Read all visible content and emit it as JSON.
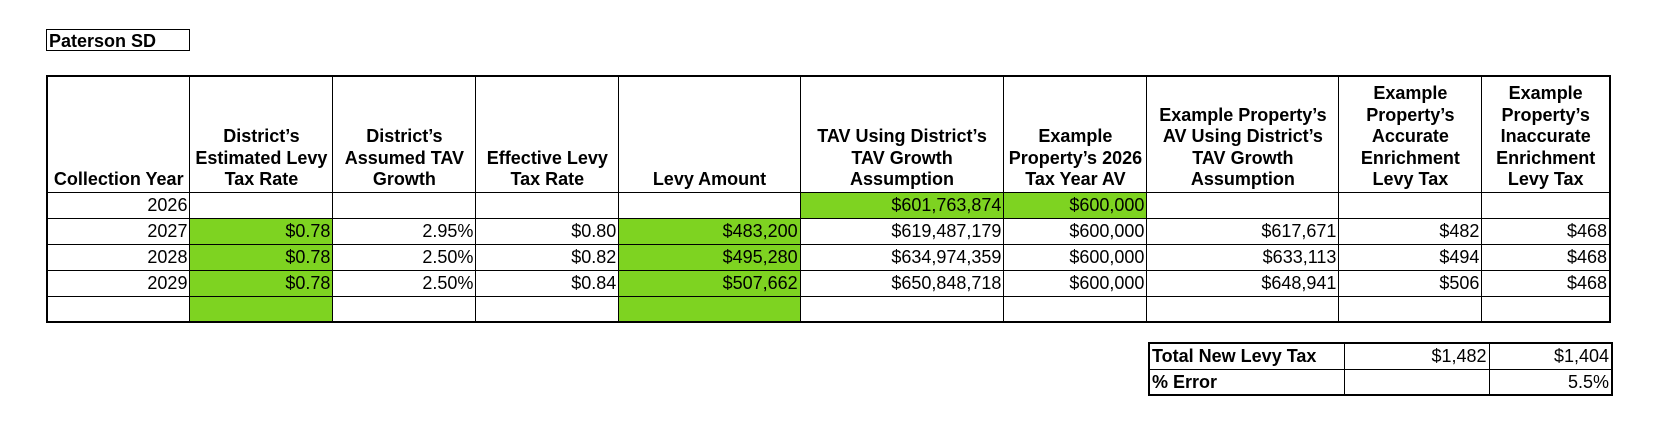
{
  "title": "Paterson SD",
  "colors": {
    "highlight": "#7ed321"
  },
  "headers": [
    "Collection Year",
    "District’s Estimated Levy Tax Rate",
    "District’s Assumed TAV Growth",
    "Effective Levy Tax Rate",
    "Levy Amount",
    "TAV Using District’s TAV Growth Assumption",
    "Example Property’s 2026 Tax Year AV",
    "Example Property’s AV Using District’s TAV Growth Assumption",
    "Example Property’s Accurate Enrichment Levy Tax",
    "Example Property’s Inaccurate Enrichment Levy Tax"
  ],
  "rows": [
    {
      "year": "2026",
      "rate": "",
      "growth": "",
      "eff": "",
      "levy": "",
      "tav": "$601,763,874",
      "av2026": "$600,000",
      "av": "",
      "accurate": "",
      "inaccurate": ""
    },
    {
      "year": "2027",
      "rate": "$0.78",
      "growth": "2.95%",
      "eff": "$0.80",
      "levy": "$483,200",
      "tav": "$619,487,179",
      "av2026": "$600,000",
      "av": "$617,671",
      "accurate": "$482",
      "inaccurate": "$468"
    },
    {
      "year": "2028",
      "rate": "$0.78",
      "growth": "2.50%",
      "eff": "$0.82",
      "levy": "$495,280",
      "tav": "$634,974,359",
      "av2026": "$600,000",
      "av": "$633,113",
      "accurate": "$494",
      "inaccurate": "$468"
    },
    {
      "year": "2029",
      "rate": "$0.78",
      "growth": "2.50%",
      "eff": "$0.84",
      "levy": "$507,662",
      "tav": "$650,848,718",
      "av2026": "$600,000",
      "av": "$648,941",
      "accurate": "$506",
      "inaccurate": "$468"
    }
  ],
  "summary": {
    "total_label": "Total New Levy Tax",
    "total_accurate": "$1,482",
    "total_inaccurate": "$1,404",
    "error_label": "% Error",
    "error_accurate": "",
    "error_inaccurate": "5.5%"
  }
}
